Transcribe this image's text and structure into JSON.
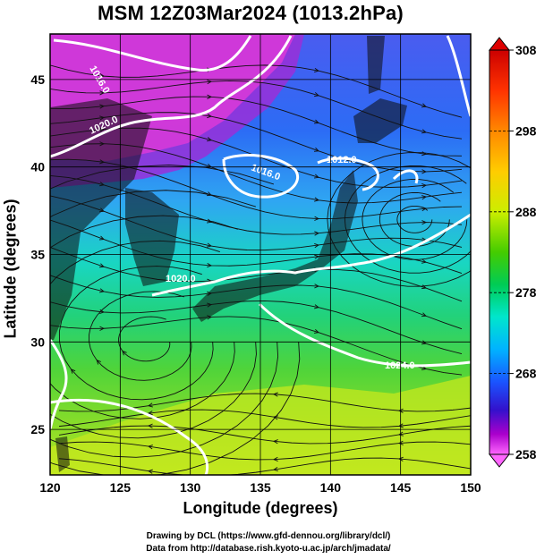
{
  "title": "MSM 12Z03Mar2024 (1013.2hPa)",
  "axes": {
    "xlabel": "Longitude (degrees)",
    "ylabel": "Latitude  (degrees)",
    "x_ticks": [
      "120",
      "125",
      "130",
      "135",
      "140",
      "145",
      "150"
    ],
    "y_ticks": [
      "25",
      "30",
      "35",
      "40",
      "45"
    ],
    "xlim": [
      120,
      150
    ],
    "ylim": [
      22.4,
      47.6
    ]
  },
  "colorbar": {
    "ticks": [
      "308",
      "298",
      "288",
      "278",
      "268",
      "258"
    ],
    "range": [
      258,
      308
    ],
    "colors": [
      "#ff66ff",
      "#cc00cc",
      "#6600cc",
      "#1a1acc",
      "#1a55ff",
      "#00b3ff",
      "#00e6cc",
      "#00cc44",
      "#33cc00",
      "#99dd00",
      "#ddee00",
      "#ffcc00",
      "#ff8800",
      "#ff3300",
      "#cc0000"
    ]
  },
  "contour_labels": [
    "1016.0",
    "1020.0",
    "1016.0",
    "1012.0",
    "1020.0",
    "1024.0"
  ],
  "credits": {
    "line1": "Drawing by DCL (https://www.gfd-dennou.org/library/dcl/)",
    "line2": "Data from http://database.rish.kyoto-u.ac.jp/arch/jmadata/"
  },
  "land_color": "#101010",
  "isobar_color": "#ffffff"
}
